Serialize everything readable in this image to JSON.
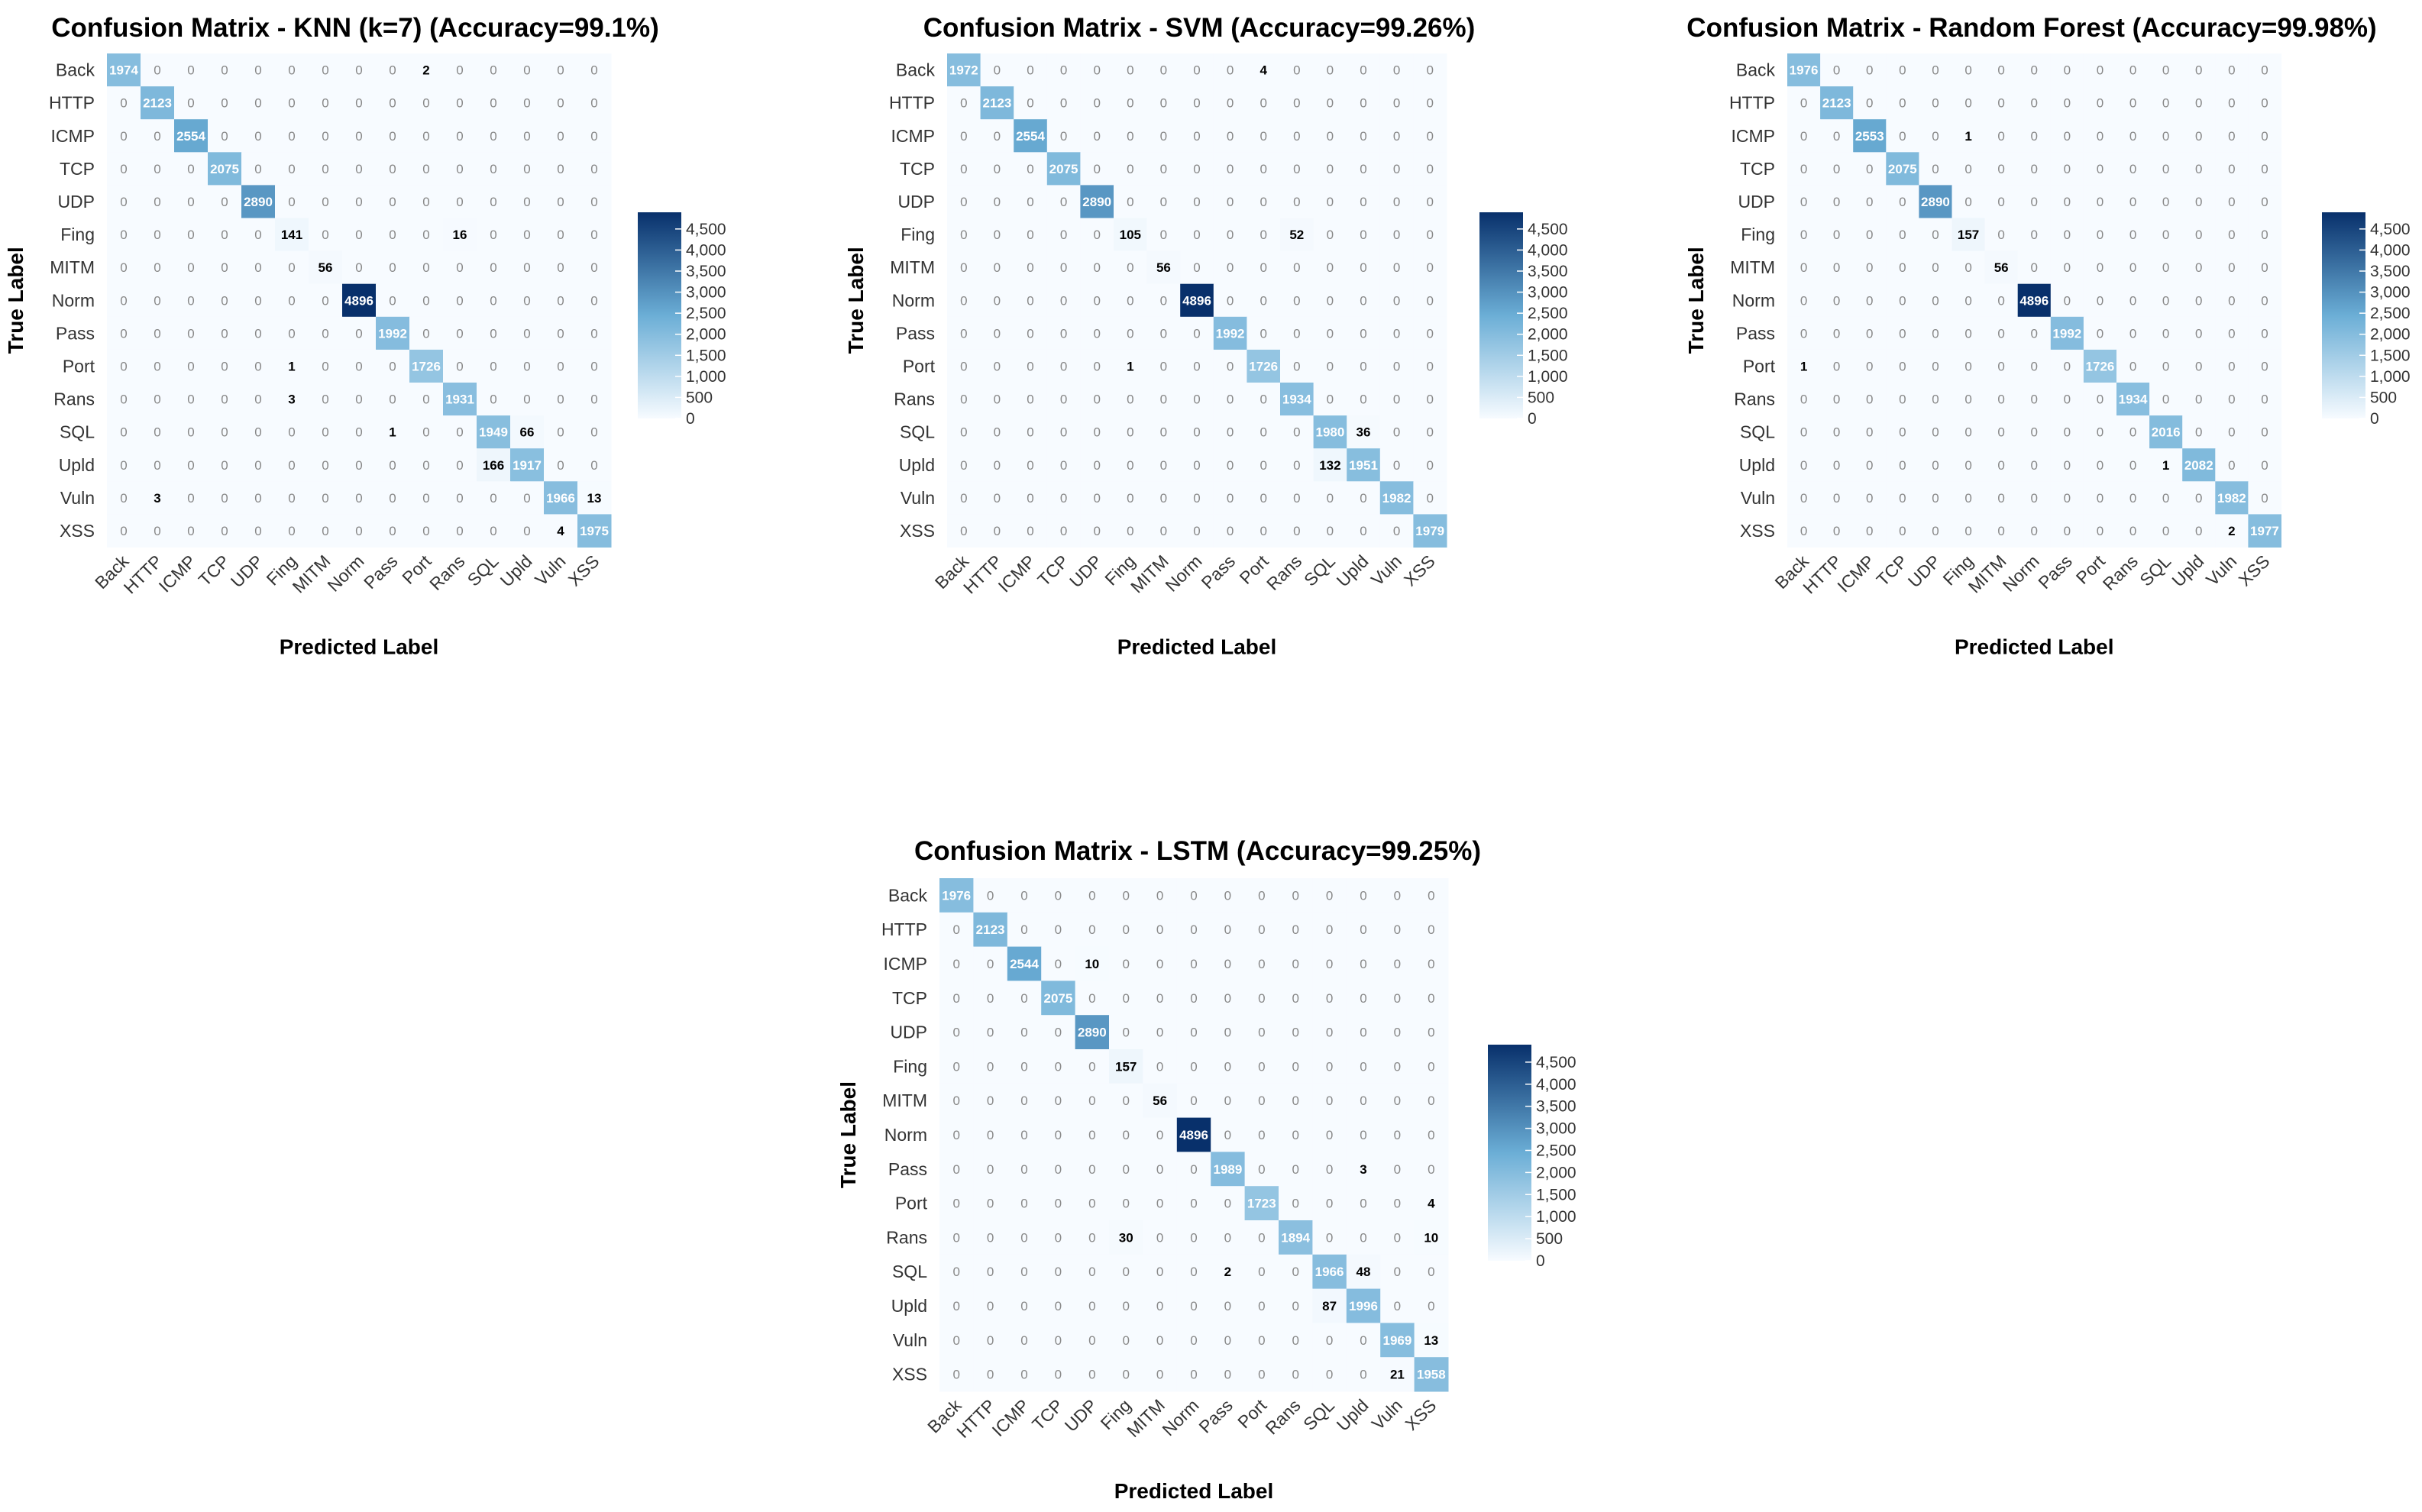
{
  "colors": {
    "low": "#f7fbff",
    "mid": "#6baed6",
    "high": "#08306b",
    "zero_text": "#888888",
    "text_dark": "#000000",
    "text_light": "#ffffff"
  },
  "chart_data": [
    {
      "type": "heatmap",
      "title": "Confusion Matrix - KNN (k=7) (Accuracy=99.1%)",
      "xlabel": "Predicted Label",
      "ylabel": "True Label",
      "labels": [
        "Back",
        "HTTP",
        "ICMP",
        "TCP",
        "UDP",
        "Fing",
        "MITM",
        "Norm",
        "Pass",
        "Port",
        "Rans",
        "SQL",
        "Upld",
        "Vuln",
        "XSS"
      ],
      "matrix": [
        [
          1974,
          0,
          0,
          0,
          0,
          0,
          0,
          0,
          0,
          2,
          0,
          0,
          0,
          0,
          0
        ],
        [
          0,
          2123,
          0,
          0,
          0,
          0,
          0,
          0,
          0,
          0,
          0,
          0,
          0,
          0,
          0
        ],
        [
          0,
          0,
          2554,
          0,
          0,
          0,
          0,
          0,
          0,
          0,
          0,
          0,
          0,
          0,
          0
        ],
        [
          0,
          0,
          0,
          2075,
          0,
          0,
          0,
          0,
          0,
          0,
          0,
          0,
          0,
          0,
          0
        ],
        [
          0,
          0,
          0,
          0,
          2890,
          0,
          0,
          0,
          0,
          0,
          0,
          0,
          0,
          0,
          0
        ],
        [
          0,
          0,
          0,
          0,
          0,
          141,
          0,
          0,
          0,
          0,
          16,
          0,
          0,
          0,
          0
        ],
        [
          0,
          0,
          0,
          0,
          0,
          0,
          56,
          0,
          0,
          0,
          0,
          0,
          0,
          0,
          0
        ],
        [
          0,
          0,
          0,
          0,
          0,
          0,
          0,
          4896,
          0,
          0,
          0,
          0,
          0,
          0,
          0
        ],
        [
          0,
          0,
          0,
          0,
          0,
          0,
          0,
          0,
          1992,
          0,
          0,
          0,
          0,
          0,
          0
        ],
        [
          0,
          0,
          0,
          0,
          0,
          1,
          0,
          0,
          0,
          1726,
          0,
          0,
          0,
          0,
          0
        ],
        [
          0,
          0,
          0,
          0,
          0,
          3,
          0,
          0,
          0,
          0,
          1931,
          0,
          0,
          0,
          0
        ],
        [
          0,
          0,
          0,
          0,
          0,
          0,
          0,
          0,
          1,
          0,
          0,
          1949,
          66,
          0,
          0
        ],
        [
          0,
          0,
          0,
          0,
          0,
          0,
          0,
          0,
          0,
          0,
          0,
          166,
          1917,
          0,
          0
        ],
        [
          0,
          3,
          0,
          0,
          0,
          0,
          0,
          0,
          0,
          0,
          0,
          0,
          0,
          1966,
          13
        ],
        [
          0,
          0,
          0,
          0,
          0,
          0,
          0,
          0,
          0,
          0,
          0,
          0,
          0,
          4,
          1975
        ]
      ],
      "colorbar_ticks": [
        "4,500",
        "4,000",
        "3,500",
        "3,000",
        "2,500",
        "2,000",
        "1,500",
        "1,000",
        "500",
        "0"
      ],
      "colorbar_values": [
        4500,
        4000,
        3500,
        3000,
        2500,
        2000,
        1500,
        1000,
        500,
        0
      ],
      "color_range": [
        0,
        4896
      ]
    },
    {
      "type": "heatmap",
      "title": "Confusion Matrix - SVM (Accuracy=99.26%)",
      "xlabel": "Predicted Label",
      "ylabel": "True Label",
      "labels": [
        "Back",
        "HTTP",
        "ICMP",
        "TCP",
        "UDP",
        "Fing",
        "MITM",
        "Norm",
        "Pass",
        "Port",
        "Rans",
        "SQL",
        "Upld",
        "Vuln",
        "XSS"
      ],
      "matrix": [
        [
          1972,
          0,
          0,
          0,
          0,
          0,
          0,
          0,
          0,
          4,
          0,
          0,
          0,
          0,
          0
        ],
        [
          0,
          2123,
          0,
          0,
          0,
          0,
          0,
          0,
          0,
          0,
          0,
          0,
          0,
          0,
          0
        ],
        [
          0,
          0,
          2554,
          0,
          0,
          0,
          0,
          0,
          0,
          0,
          0,
          0,
          0,
          0,
          0
        ],
        [
          0,
          0,
          0,
          2075,
          0,
          0,
          0,
          0,
          0,
          0,
          0,
          0,
          0,
          0,
          0
        ],
        [
          0,
          0,
          0,
          0,
          2890,
          0,
          0,
          0,
          0,
          0,
          0,
          0,
          0,
          0,
          0
        ],
        [
          0,
          0,
          0,
          0,
          0,
          105,
          0,
          0,
          0,
          0,
          52,
          0,
          0,
          0,
          0
        ],
        [
          0,
          0,
          0,
          0,
          0,
          0,
          56,
          0,
          0,
          0,
          0,
          0,
          0,
          0,
          0
        ],
        [
          0,
          0,
          0,
          0,
          0,
          0,
          0,
          4896,
          0,
          0,
          0,
          0,
          0,
          0,
          0
        ],
        [
          0,
          0,
          0,
          0,
          0,
          0,
          0,
          0,
          1992,
          0,
          0,
          0,
          0,
          0,
          0
        ],
        [
          0,
          0,
          0,
          0,
          0,
          1,
          0,
          0,
          0,
          1726,
          0,
          0,
          0,
          0,
          0
        ],
        [
          0,
          0,
          0,
          0,
          0,
          0,
          0,
          0,
          0,
          0,
          1934,
          0,
          0,
          0,
          0
        ],
        [
          0,
          0,
          0,
          0,
          0,
          0,
          0,
          0,
          0,
          0,
          0,
          1980,
          36,
          0,
          0
        ],
        [
          0,
          0,
          0,
          0,
          0,
          0,
          0,
          0,
          0,
          0,
          0,
          132,
          1951,
          0,
          0
        ],
        [
          0,
          0,
          0,
          0,
          0,
          0,
          0,
          0,
          0,
          0,
          0,
          0,
          0,
          1982,
          0
        ],
        [
          0,
          0,
          0,
          0,
          0,
          0,
          0,
          0,
          0,
          0,
          0,
          0,
          0,
          0,
          1979
        ]
      ],
      "colorbar_ticks": [
        "4,500",
        "4,000",
        "3,500",
        "3,000",
        "2,500",
        "2,000",
        "1,500",
        "1,000",
        "500",
        "0"
      ],
      "colorbar_values": [
        4500,
        4000,
        3500,
        3000,
        2500,
        2000,
        1500,
        1000,
        500,
        0
      ],
      "color_range": [
        0,
        4896
      ]
    },
    {
      "type": "heatmap",
      "title": "Confusion Matrix - Random Forest (Accuracy=99.98%)",
      "xlabel": "Predicted Label",
      "ylabel": "True Label",
      "labels": [
        "Back",
        "HTTP",
        "ICMP",
        "TCP",
        "UDP",
        "Fing",
        "MITM",
        "Norm",
        "Pass",
        "Port",
        "Rans",
        "SQL",
        "Upld",
        "Vuln",
        "XSS"
      ],
      "matrix": [
        [
          1976,
          0,
          0,
          0,
          0,
          0,
          0,
          0,
          0,
          0,
          0,
          0,
          0,
          0,
          0
        ],
        [
          0,
          2123,
          0,
          0,
          0,
          0,
          0,
          0,
          0,
          0,
          0,
          0,
          0,
          0,
          0
        ],
        [
          0,
          0,
          2553,
          0,
          0,
          1,
          0,
          0,
          0,
          0,
          0,
          0,
          0,
          0,
          0
        ],
        [
          0,
          0,
          0,
          2075,
          0,
          0,
          0,
          0,
          0,
          0,
          0,
          0,
          0,
          0,
          0
        ],
        [
          0,
          0,
          0,
          0,
          2890,
          0,
          0,
          0,
          0,
          0,
          0,
          0,
          0,
          0,
          0
        ],
        [
          0,
          0,
          0,
          0,
          0,
          157,
          0,
          0,
          0,
          0,
          0,
          0,
          0,
          0,
          0
        ],
        [
          0,
          0,
          0,
          0,
          0,
          0,
          56,
          0,
          0,
          0,
          0,
          0,
          0,
          0,
          0
        ],
        [
          0,
          0,
          0,
          0,
          0,
          0,
          0,
          4896,
          0,
          0,
          0,
          0,
          0,
          0,
          0
        ],
        [
          0,
          0,
          0,
          0,
          0,
          0,
          0,
          0,
          1992,
          0,
          0,
          0,
          0,
          0,
          0
        ],
        [
          1,
          0,
          0,
          0,
          0,
          0,
          0,
          0,
          0,
          1726,
          0,
          0,
          0,
          0,
          0
        ],
        [
          0,
          0,
          0,
          0,
          0,
          0,
          0,
          0,
          0,
          0,
          1934,
          0,
          0,
          0,
          0
        ],
        [
          0,
          0,
          0,
          0,
          0,
          0,
          0,
          0,
          0,
          0,
          0,
          2016,
          0,
          0,
          0
        ],
        [
          0,
          0,
          0,
          0,
          0,
          0,
          0,
          0,
          0,
          0,
          0,
          1,
          2082,
          0,
          0
        ],
        [
          0,
          0,
          0,
          0,
          0,
          0,
          0,
          0,
          0,
          0,
          0,
          0,
          0,
          1982,
          0
        ],
        [
          0,
          0,
          0,
          0,
          0,
          0,
          0,
          0,
          0,
          0,
          0,
          0,
          0,
          2,
          1977
        ]
      ],
      "colorbar_ticks": [
        "4,500",
        "4,000",
        "3,500",
        "3,000",
        "2,500",
        "2,000",
        "1,500",
        "1,000",
        "500",
        "0"
      ],
      "colorbar_values": [
        4500,
        4000,
        3500,
        3000,
        2500,
        2000,
        1500,
        1000,
        500,
        0
      ],
      "color_range": [
        0,
        4896
      ]
    },
    {
      "type": "heatmap",
      "title": "Confusion Matrix - LSTM (Accuracy=99.25%)",
      "xlabel": "Predicted Label",
      "ylabel": "True Label",
      "labels": [
        "Back",
        "HTTP",
        "ICMP",
        "TCP",
        "UDP",
        "Fing",
        "MITM",
        "Norm",
        "Pass",
        "Port",
        "Rans",
        "SQL",
        "Upld",
        "Vuln",
        "XSS"
      ],
      "matrix": [
        [
          1976,
          0,
          0,
          0,
          0,
          0,
          0,
          0,
          0,
          0,
          0,
          0,
          0,
          0,
          0
        ],
        [
          0,
          2123,
          0,
          0,
          0,
          0,
          0,
          0,
          0,
          0,
          0,
          0,
          0,
          0,
          0
        ],
        [
          0,
          0,
          2544,
          0,
          10,
          0,
          0,
          0,
          0,
          0,
          0,
          0,
          0,
          0,
          0
        ],
        [
          0,
          0,
          0,
          2075,
          0,
          0,
          0,
          0,
          0,
          0,
          0,
          0,
          0,
          0,
          0
        ],
        [
          0,
          0,
          0,
          0,
          2890,
          0,
          0,
          0,
          0,
          0,
          0,
          0,
          0,
          0,
          0
        ],
        [
          0,
          0,
          0,
          0,
          0,
          157,
          0,
          0,
          0,
          0,
          0,
          0,
          0,
          0,
          0
        ],
        [
          0,
          0,
          0,
          0,
          0,
          0,
          56,
          0,
          0,
          0,
          0,
          0,
          0,
          0,
          0
        ],
        [
          0,
          0,
          0,
          0,
          0,
          0,
          0,
          4896,
          0,
          0,
          0,
          0,
          0,
          0,
          0
        ],
        [
          0,
          0,
          0,
          0,
          0,
          0,
          0,
          0,
          1989,
          0,
          0,
          0,
          3,
          0,
          0
        ],
        [
          0,
          0,
          0,
          0,
          0,
          0,
          0,
          0,
          0,
          1723,
          0,
          0,
          0,
          0,
          4
        ],
        [
          0,
          0,
          0,
          0,
          0,
          30,
          0,
          0,
          0,
          0,
          1894,
          0,
          0,
          0,
          10
        ],
        [
          0,
          0,
          0,
          0,
          0,
          0,
          0,
          0,
          2,
          0,
          0,
          1966,
          48,
          0,
          0
        ],
        [
          0,
          0,
          0,
          0,
          0,
          0,
          0,
          0,
          0,
          0,
          0,
          87,
          1996,
          0,
          0
        ],
        [
          0,
          0,
          0,
          0,
          0,
          0,
          0,
          0,
          0,
          0,
          0,
          0,
          0,
          1969,
          13
        ],
        [
          0,
          0,
          0,
          0,
          0,
          0,
          0,
          0,
          0,
          0,
          0,
          0,
          0,
          21,
          1958
        ]
      ],
      "colorbar_ticks": [
        "4,500",
        "4,000",
        "3,500",
        "3,000",
        "2,500",
        "2,000",
        "1,500",
        "1,000",
        "500",
        "0"
      ],
      "colorbar_values": [
        4500,
        4000,
        3500,
        3000,
        2500,
        2000,
        1500,
        1000,
        500,
        0
      ],
      "color_range": [
        0,
        4896
      ]
    }
  ]
}
